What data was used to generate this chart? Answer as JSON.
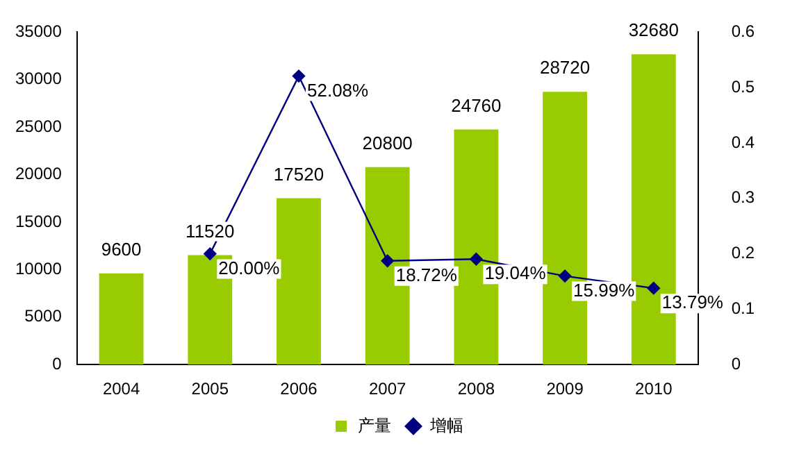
{
  "chart_data": {
    "type": "bar",
    "categories": [
      "2004",
      "2005",
      "2006",
      "2007",
      "2008",
      "2009",
      "2010"
    ],
    "series": [
      {
        "name": "产量",
        "type": "bar",
        "color": "#99cc00",
        "values": [
          9600,
          11520,
          17520,
          20800,
          24760,
          28720,
          32680
        ],
        "value_labels": [
          "9600",
          "11520",
          "17520",
          "20800",
          "24760",
          "28720",
          "32680"
        ]
      },
      {
        "name": "增幅",
        "type": "line",
        "axis": "y2",
        "color": "#000080",
        "values": [
          null,
          0.2,
          0.5208,
          0.1872,
          0.1904,
          0.1599,
          0.1379
        ],
        "value_labels": [
          null,
          "20.00%",
          "52.08%",
          "18.72%",
          "19.04%",
          "15.99%",
          "13.79%"
        ],
        "marker": "diamond",
        "line_style": "solid"
      }
    ],
    "ylim": [
      0,
      35000
    ],
    "yticks": [
      0,
      5000,
      10000,
      15000,
      20000,
      25000,
      30000,
      35000
    ],
    "y2lim": [
      0,
      0.6
    ],
    "y2ticks": [
      0,
      0.1,
      0.2,
      0.3,
      0.4,
      0.5,
      0.6
    ],
    "grid": false,
    "legend": "bottom"
  }
}
